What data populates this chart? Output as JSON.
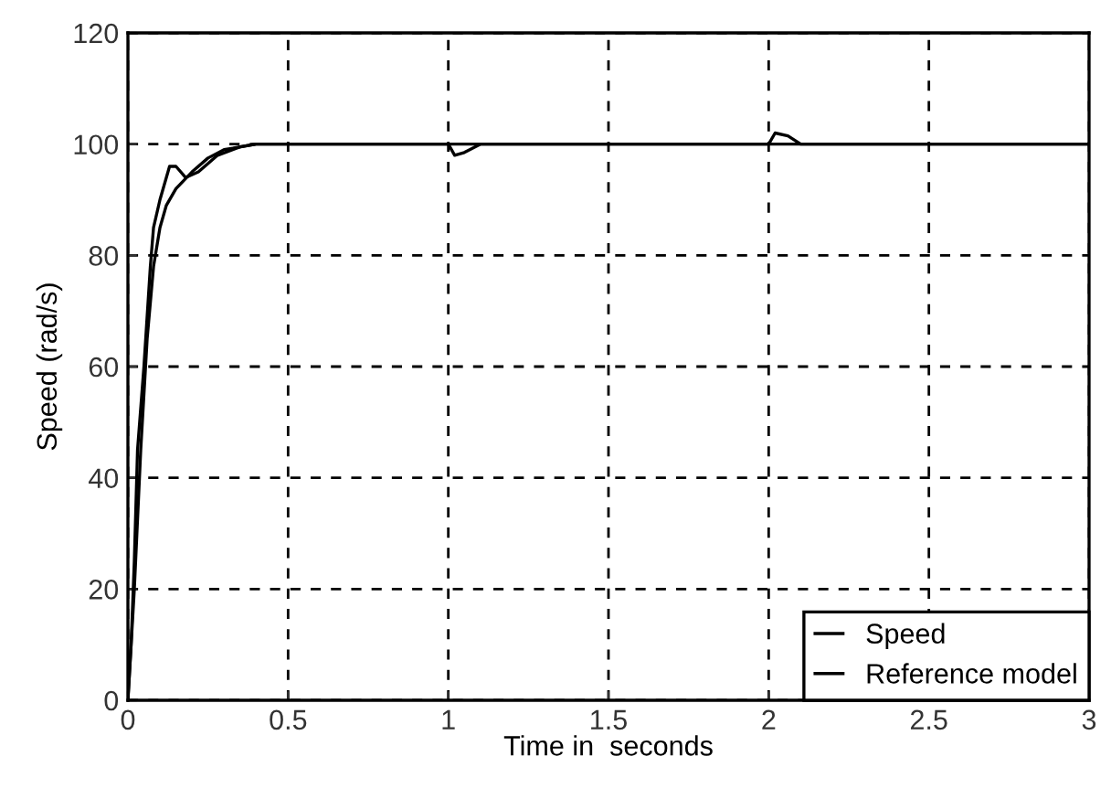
{
  "chart_data": {
    "type": "line",
    "xlabel": "Time in  seconds",
    "ylabel": "Speed (rad/s)",
    "xlim": [
      0,
      3
    ],
    "ylim": [
      0,
      120
    ],
    "xticks": [
      0,
      0.5,
      1,
      1.5,
      2,
      2.5,
      3
    ],
    "yticks": [
      0,
      20,
      40,
      60,
      80,
      100,
      120
    ],
    "grid": true,
    "legend": "bottom right",
    "series": [
      {
        "name": "Speed",
        "color": "#000000",
        "x": [
          0,
          0.01,
          0.02,
          0.03,
          0.05,
          0.07,
          0.08,
          0.1,
          0.13,
          0.15,
          0.18,
          0.22,
          0.28,
          0.35,
          0.4,
          1.0,
          1.02,
          1.05,
          1.1,
          2.0,
          2.02,
          2.06,
          2.1,
          3
        ],
        "values": [
          0,
          10,
          25,
          45,
          60,
          78,
          85,
          90,
          96,
          96,
          94,
          95,
          98,
          99.5,
          100,
          100,
          98,
          98.5,
          100,
          100,
          102,
          101.5,
          100,
          100
        ]
      },
      {
        "name": "Reference model",
        "color": "#000000",
        "x": [
          0,
          0.02,
          0.04,
          0.06,
          0.08,
          0.1,
          0.12,
          0.15,
          0.2,
          0.25,
          0.3,
          0.4,
          3
        ],
        "values": [
          0,
          20,
          45,
          65,
          78,
          85,
          89,
          92,
          95,
          97.5,
          99,
          100,
          100
        ]
      }
    ]
  }
}
